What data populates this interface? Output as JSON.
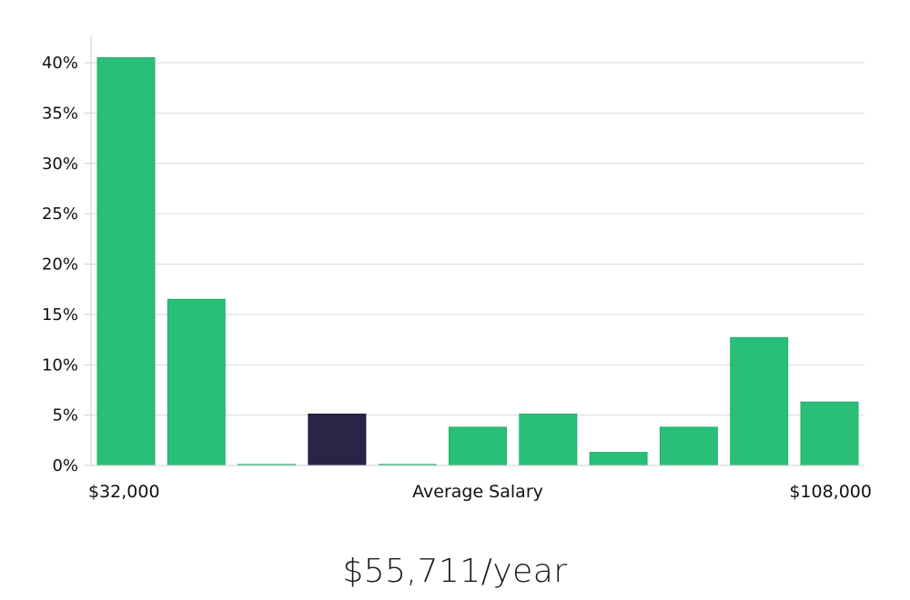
{
  "colors": {
    "bar": "#2abf78",
    "bar_highlight": "#2a2547",
    "grid": "#d9d9d9",
    "axis": "#cccccc"
  },
  "chart_data": {
    "type": "bar",
    "title": "",
    "xlabel": "Average Salary",
    "ylabel": "",
    "x_min_label": "$32,000",
    "x_max_label": "$108,000",
    "ylim": [
      0,
      42
    ],
    "y_ticks": [
      0,
      5,
      10,
      15,
      20,
      25,
      30,
      35,
      40
    ],
    "y_tick_labels": [
      "0%",
      "5%",
      "10%",
      "15%",
      "20%",
      "25%",
      "30%",
      "35%",
      "40%"
    ],
    "values": [
      40.5,
      16.5,
      0.1,
      5.1,
      0.1,
      3.8,
      5.1,
      1.3,
      3.8,
      12.7,
      6.3
    ],
    "highlight_index": 3,
    "grid": true
  },
  "summary": {
    "salary_text": "$55,711/year"
  }
}
